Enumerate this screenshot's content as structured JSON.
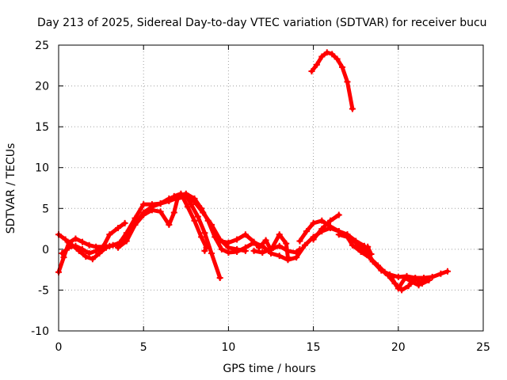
{
  "chart_data": {
    "type": "scatter",
    "title": "Day 213 of 2025, Sidereal Day-to-day VTEC variation (SDTVAR) for receiver bucu",
    "xlabel": "GPS time / hours",
    "ylabel": "SDTVAR / TECUs",
    "xlim": [
      0,
      25
    ],
    "ylim": [
      -10,
      25
    ],
    "xticks": [
      0,
      5,
      10,
      15,
      20,
      25
    ],
    "yticks": [
      -10,
      -5,
      0,
      5,
      10,
      15,
      20,
      25
    ],
    "grid": true,
    "color": "#ff0000",
    "series": [
      {
        "name": "track-1",
        "points": [
          [
            0,
            -2.8
          ],
          [
            0.3,
            -1
          ],
          [
            0.6,
            0.8
          ],
          [
            1,
            1.3
          ],
          [
            1.4,
            0.9
          ],
          [
            1.8,
            0.5
          ],
          [
            2.2,
            0.3
          ],
          [
            2.6,
            0.3
          ],
          [
            3,
            0.4
          ],
          [
            3.5,
            0.6
          ],
          [
            4,
            1.5
          ],
          [
            4.5,
            3
          ],
          [
            5,
            4.5
          ],
          [
            5.5,
            5.2
          ],
          [
            6,
            5.6
          ],
          [
            6.5,
            5.9
          ],
          [
            7,
            6.3
          ],
          [
            7.5,
            6.6
          ],
          [
            7.8,
            5.5
          ],
          [
            8.2,
            4
          ],
          [
            8.6,
            2
          ],
          [
            9,
            -0.5
          ],
          [
            9.5,
            -3.5
          ]
        ]
      },
      {
        "name": "track-2",
        "points": [
          [
            0,
            1.8
          ],
          [
            0.4,
            1.2
          ],
          [
            0.8,
            0.5
          ],
          [
            1.2,
            -0.2
          ],
          [
            1.6,
            -0.9
          ],
          [
            2,
            -1.2
          ],
          [
            2.4,
            -0.5
          ],
          [
            2.8,
            0.2
          ],
          [
            3.2,
            0.5
          ],
          [
            3.6,
            0.8
          ],
          [
            4,
            2
          ],
          [
            4.5,
            3.8
          ],
          [
            5,
            5.5
          ],
          [
            5.5,
            5.5
          ],
          [
            6,
            5.6
          ],
          [
            6.5,
            6.2
          ],
          [
            7,
            6.5
          ],
          [
            7.5,
            6.8
          ],
          [
            8,
            6.2
          ],
          [
            8.4,
            5
          ],
          [
            8.8,
            3.5
          ],
          [
            9.2,
            1.5
          ],
          [
            9.6,
            0
          ],
          [
            10,
            -0.4
          ],
          [
            10.5,
            -0.3
          ],
          [
            11,
            0.2
          ],
          [
            11.5,
            0.8
          ],
          [
            12,
            0.4
          ],
          [
            12.5,
            -0.5
          ],
          [
            13,
            -0.8
          ],
          [
            13.5,
            -1.3
          ],
          [
            14,
            -1
          ],
          [
            14.5,
            0.5
          ],
          [
            15,
            1.5
          ],
          [
            15.5,
            2.2
          ],
          [
            16,
            2.6
          ],
          [
            16.5,
            2.2
          ],
          [
            17,
            1.8
          ],
          [
            17.5,
            1
          ],
          [
            18,
            0.4
          ],
          [
            18.5,
            -1.5
          ],
          [
            19,
            -2.6
          ],
          [
            19.5,
            -3.1
          ],
          [
            20,
            -3.4
          ],
          [
            20.5,
            -3.3
          ],
          [
            21,
            -3.5
          ],
          [
            21.5,
            -3.5
          ],
          [
            22,
            -3.4
          ],
          [
            22.5,
            -3
          ],
          [
            22.9,
            -2.7
          ]
        ]
      },
      {
        "name": "track-3",
        "points": [
          [
            0.2,
            -0.5
          ],
          [
            0.6,
            0.2
          ],
          [
            1,
            0.4
          ],
          [
            1.4,
            0
          ],
          [
            1.8,
            -0.5
          ],
          [
            2.2,
            -0.2
          ],
          [
            2.6,
            0.2
          ],
          [
            3,
            1.8
          ],
          [
            3.5,
            2.6
          ],
          [
            3.9,
            3.2
          ]
        ]
      },
      {
        "name": "track-4",
        "points": [
          [
            3.5,
            0.2
          ],
          [
            4,
            1
          ],
          [
            4.5,
            3
          ],
          [
            5,
            4.2
          ],
          [
            5.5,
            4.8
          ],
          [
            6,
            4.6
          ],
          [
            6.5,
            3
          ],
          [
            6.8,
            4.5
          ],
          [
            7,
            6.2
          ],
          [
            7.5,
            6.5
          ],
          [
            8,
            5.8
          ],
          [
            8.5,
            4.5
          ],
          [
            9,
            3
          ],
          [
            9.5,
            1.2
          ],
          [
            10,
            0.2
          ],
          [
            10.5,
            0
          ],
          [
            11,
            -0.2
          ]
        ]
      },
      {
        "name": "track-5",
        "points": [
          [
            6.8,
            6.5
          ],
          [
            7.2,
            6.8
          ],
          [
            7.6,
            5.2
          ],
          [
            8,
            3.5
          ],
          [
            8.4,
            1.5
          ],
          [
            8.7,
            0.2
          ],
          [
            8.6,
            -0.2
          ]
        ]
      },
      {
        "name": "track-6",
        "points": [
          [
            9.5,
            1
          ],
          [
            10,
            0.8
          ],
          [
            10.5,
            1.2
          ],
          [
            11,
            1.8
          ],
          [
            11.5,
            0.9
          ],
          [
            11.8,
            0.2
          ],
          [
            12.2,
            1.1
          ],
          [
            12.5,
            -0.1
          ],
          [
            13,
            1.8
          ],
          [
            13.4,
            0.7
          ],
          [
            13.5,
            -1
          ]
        ]
      },
      {
        "name": "track-7",
        "points": [
          [
            11.5,
            -0.2
          ],
          [
            12,
            -0.4
          ],
          [
            12.5,
            0
          ],
          [
            13,
            0.4
          ],
          [
            13.5,
            -0.2
          ],
          [
            14,
            -0.4
          ],
          [
            14.2,
            0
          ]
        ]
      },
      {
        "name": "track-8",
        "points": [
          [
            14.2,
            1
          ],
          [
            14.6,
            2.2
          ],
          [
            15,
            3.2
          ],
          [
            15.5,
            3.5
          ],
          [
            16,
            2.8
          ],
          [
            16.5,
            2.2
          ],
          [
            17,
            1.8
          ],
          [
            17.5,
            0.8
          ],
          [
            18,
            -0.2
          ],
          [
            18.4,
            -0.6
          ],
          [
            18.2,
            0.3
          ]
        ]
      },
      {
        "name": "track-9",
        "points": [
          [
            15,
            1.2
          ],
          [
            15.5,
            2.5
          ],
          [
            16,
            3.5
          ],
          [
            16.5,
            4.2
          ]
        ]
      },
      {
        "name": "track-10",
        "points": [
          [
            16.5,
            1.8
          ],
          [
            17,
            1.5
          ],
          [
            17.3,
            0.5
          ],
          [
            17.8,
            -0.3
          ],
          [
            18.3,
            -1
          ],
          [
            18.8,
            -2
          ],
          [
            19.2,
            -2.8
          ],
          [
            19.6,
            -3.5
          ],
          [
            20,
            -4.8
          ],
          [
            20.4,
            -3.5
          ],
          [
            20.8,
            -4
          ],
          [
            21.2,
            -4.4
          ],
          [
            21.5,
            -3.8
          ]
        ]
      },
      {
        "name": "track-11",
        "points": [
          [
            19,
            -2.5
          ],
          [
            19.4,
            -3.2
          ],
          [
            19.8,
            -4.2
          ],
          [
            20.2,
            -5
          ],
          [
            20.6,
            -4.5
          ],
          [
            21,
            -3.6
          ],
          [
            21.4,
            -4.2
          ],
          [
            21.8,
            -3.8
          ]
        ]
      },
      {
        "name": "track-12",
        "points": [
          [
            14.9,
            21.8
          ],
          [
            15.2,
            22.6
          ],
          [
            15.5,
            23.6
          ],
          [
            15.8,
            24.1
          ],
          [
            16.1,
            23.9
          ],
          [
            16.4,
            23.3
          ],
          [
            16.7,
            22.3
          ],
          [
            17,
            20.5
          ],
          [
            17.3,
            17.2
          ]
        ]
      }
    ]
  }
}
